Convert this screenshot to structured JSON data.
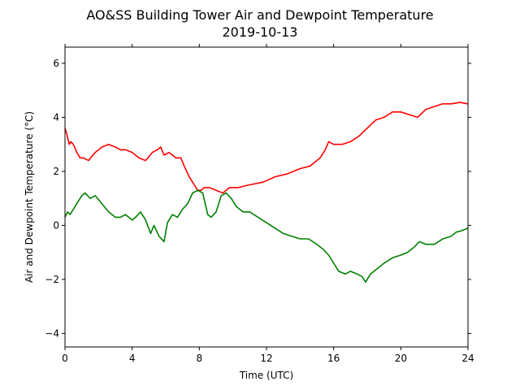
{
  "chart_data": {
    "type": "line",
    "title": "AO&SS Building Tower Air and Dewpoint Temperature",
    "subtitle": "2019-10-13",
    "xlabel": "Time (UTC)",
    "ylabel": "Air and Dewpoint Temperature (°C)",
    "xlim": [
      0,
      24
    ],
    "ylim": [
      -4.5,
      6.6
    ],
    "xticks": [
      0,
      4,
      8,
      12,
      16,
      20,
      24
    ],
    "yticks": [
      -4,
      -2,
      0,
      2,
      4,
      6
    ],
    "grid": false,
    "series": [
      {
        "color": "#ff0000",
        "x": [
          0,
          0.1,
          0.25,
          0.35,
          0.5,
          0.7,
          0.9,
          1.1,
          1.4,
          1.8,
          2.2,
          2.6,
          3.0,
          3.3,
          3.6,
          4.0,
          4.4,
          4.8,
          5.2,
          5.5,
          5.7,
          5.9,
          6.2,
          6.6,
          6.9,
          7.1,
          7.4,
          7.7,
          7.9,
          8.1,
          8.3,
          8.6,
          9.0,
          9.4,
          9.8,
          10.3,
          11.0,
          11.8,
          12.5,
          13.2,
          14.0,
          14.6,
          15.2,
          15.5,
          15.7,
          16.0,
          16.5,
          17.0,
          17.5,
          18.0,
          18.5,
          19.0,
          19.5,
          20.0,
          20.5,
          21.0,
          21.5,
          22.0,
          22.5,
          23.0,
          23.5,
          24.0
        ],
        "y": [
          3.6,
          3.4,
          3.0,
          3.1,
          3.0,
          2.7,
          2.5,
          2.5,
          2.4,
          2.7,
          2.9,
          3.0,
          2.9,
          2.8,
          2.8,
          2.7,
          2.5,
          2.4,
          2.7,
          2.8,
          2.9,
          2.6,
          2.7,
          2.5,
          2.5,
          2.2,
          1.8,
          1.5,
          1.3,
          1.3,
          1.4,
          1.4,
          1.3,
          1.2,
          1.4,
          1.4,
          1.5,
          1.6,
          1.8,
          1.9,
          2.1,
          2.2,
          2.5,
          2.8,
          3.1,
          3.0,
          3.0,
          3.1,
          3.3,
          3.6,
          3.9,
          4.0,
          4.2,
          4.2,
          4.1,
          4.0,
          4.3,
          4.4,
          4.5,
          4.5,
          4.55,
          4.5
        ]
      },
      {
        "color": "#008000",
        "x": [
          0,
          0.15,
          0.3,
          0.5,
          0.8,
          1.0,
          1.2,
          1.5,
          1.8,
          2.2,
          2.6,
          3.0,
          3.3,
          3.6,
          4.0,
          4.2,
          4.5,
          4.8,
          5.1,
          5.3,
          5.6,
          5.9,
          6.1,
          6.4,
          6.7,
          7.0,
          7.3,
          7.6,
          7.9,
          8.2,
          8.5,
          8.7,
          9.0,
          9.3,
          9.6,
          9.9,
          10.2,
          10.6,
          11.0,
          11.5,
          12.0,
          12.5,
          13.0,
          13.5,
          14.0,
          14.5,
          15.0,
          15.4,
          15.7,
          16.0,
          16.3,
          16.7,
          17.0,
          17.4,
          17.7,
          17.9,
          18.2,
          18.6,
          19.0,
          19.5,
          20.0,
          20.4,
          20.8,
          21.1,
          21.5,
          22.0,
          22.5,
          23.0,
          23.3,
          23.6,
          24.0
        ],
        "y": [
          0.3,
          0.5,
          0.4,
          0.6,
          0.9,
          1.1,
          1.2,
          1.0,
          1.1,
          0.8,
          0.5,
          0.3,
          0.3,
          0.4,
          0.2,
          0.3,
          0.5,
          0.2,
          -0.3,
          0.0,
          -0.4,
          -0.6,
          0.1,
          0.4,
          0.3,
          0.6,
          0.8,
          1.2,
          1.3,
          1.2,
          0.4,
          0.3,
          0.5,
          1.1,
          1.2,
          1.0,
          0.7,
          0.5,
          0.5,
          0.3,
          0.1,
          -0.1,
          -0.3,
          -0.4,
          -0.5,
          -0.5,
          -0.7,
          -0.9,
          -1.1,
          -1.4,
          -1.7,
          -1.8,
          -1.7,
          -1.8,
          -1.9,
          -2.1,
          -1.8,
          -1.6,
          -1.4,
          -1.2,
          -1.1,
          -1.0,
          -0.8,
          -0.6,
          -0.7,
          -0.7,
          -0.5,
          -0.4,
          -0.25,
          -0.2,
          -0.1
        ]
      }
    ]
  }
}
